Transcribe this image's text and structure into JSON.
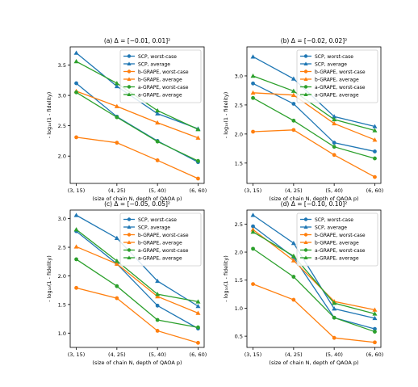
{
  "figure": {
    "x_ticklabels": [
      "(3, 15)",
      "(4, 25)",
      "(5, 40)",
      "(6, 60)"
    ],
    "xlabel": "(size of chain N, depth of QAOA p)",
    "ylabel": "- log₁₀(1 - fidelity)",
    "colors": {
      "SCP": "#1f77b4",
      "b-GRAPE": "#ff7f0e",
      "a-GRAPE": "#2ca02c"
    }
  },
  "chart_data": [
    {
      "type": "line",
      "title": "(a) Δ = [−0.01, 0.01]²",
      "categories": [
        "(3, 15)",
        "(4, 25)",
        "(5, 40)",
        "(6, 60)"
      ],
      "yticks": [
        "2.0",
        "2.5",
        "3.0",
        "3.5"
      ],
      "ylim": [
        1.55,
        3.8
      ],
      "grid": false,
      "legend_loc": "upper right",
      "series": [
        {
          "name": "SCP, worst-case",
          "color": "#1f77b4",
          "marker": "circle",
          "values": [
            3.2,
            2.65,
            2.25,
            1.9
          ]
        },
        {
          "name": "SCP, average",
          "color": "#1f77b4",
          "marker": "triangle",
          "values": [
            3.7,
            3.15,
            2.7,
            2.45
          ]
        },
        {
          "name": "b-GRAPE, worst-case",
          "color": "#ff7f0e",
          "marker": "circle",
          "values": [
            2.31,
            2.22,
            1.93,
            1.63
          ]
        },
        {
          "name": "b-GRAPE, average",
          "color": "#ff7f0e",
          "marker": "triangle",
          "values": [
            3.07,
            2.82,
            2.55,
            2.3
          ]
        },
        {
          "name": "a-GRAPE, worst-case",
          "color": "#2ca02c",
          "marker": "circle",
          "values": [
            3.05,
            2.64,
            2.24,
            1.92
          ]
        },
        {
          "name": "a-GRAPE, average",
          "color": "#2ca02c",
          "marker": "triangle",
          "values": [
            3.56,
            3.2,
            2.75,
            2.44
          ]
        }
      ]
    },
    {
      "type": "line",
      "title": "(b) Δ = [−0.02, 0.02]²",
      "categories": [
        "(3, 15)",
        "(4, 25)",
        "(5, 40)",
        "(6, 60)"
      ],
      "yticks": [
        "1.5",
        "2.0",
        "2.5",
        "3.0"
      ],
      "ylim": [
        1.15,
        3.5
      ],
      "grid": false,
      "legend_loc": "upper right",
      "series": [
        {
          "name": "SCP, worst-case",
          "color": "#1f77b4",
          "marker": "circle",
          "values": [
            2.87,
            2.52,
            1.85,
            1.7
          ]
        },
        {
          "name": "SCP, average",
          "color": "#1f77b4",
          "marker": "triangle",
          "values": [
            3.33,
            2.95,
            2.3,
            2.13
          ]
        },
        {
          "name": "b-GRAPE, worst-case",
          "color": "#ff7f0e",
          "marker": "circle",
          "values": [
            2.04,
            2.07,
            1.64,
            1.26
          ]
        },
        {
          "name": "b-GRAPE, average",
          "color": "#ff7f0e",
          "marker": "triangle",
          "values": [
            2.71,
            2.67,
            2.18,
            1.9
          ]
        },
        {
          "name": "a-GRAPE, worst-case",
          "color": "#2ca02c",
          "marker": "circle",
          "values": [
            2.62,
            2.23,
            1.78,
            1.58
          ]
        },
        {
          "name": "a-GRAPE, average",
          "color": "#2ca02c",
          "marker": "triangle",
          "values": [
            3.0,
            2.74,
            2.25,
            2.06
          ]
        }
      ]
    },
    {
      "type": "line",
      "title": "(c) Δ = [−0.05, 0.05]²",
      "categories": [
        "(3, 15)",
        "(4, 25)",
        "(5, 40)",
        "(6, 60)"
      ],
      "yticks": [
        "1.0",
        "1.5",
        "2.0",
        "2.5",
        "3.0"
      ],
      "ylim": [
        0.75,
        3.15
      ],
      "grid": false,
      "legend_loc": "upper right",
      "series": [
        {
          "name": "SCP, worst-case",
          "color": "#1f77b4",
          "marker": "circle",
          "values": [
            2.78,
            2.21,
            1.48,
            1.08
          ]
        },
        {
          "name": "SCP, average",
          "color": "#1f77b4",
          "marker": "triangle",
          "values": [
            3.06,
            2.66,
            1.91,
            1.47
          ]
        },
        {
          "name": "b-GRAPE, worst-case",
          "color": "#ff7f0e",
          "marker": "circle",
          "values": [
            1.79,
            1.61,
            1.04,
            0.83
          ]
        },
        {
          "name": "b-GRAPE, average",
          "color": "#ff7f0e",
          "marker": "triangle",
          "values": [
            2.51,
            2.21,
            1.64,
            1.35
          ]
        },
        {
          "name": "a-GRAPE, worst-case",
          "color": "#2ca02c",
          "marker": "circle",
          "values": [
            2.29,
            1.82,
            1.23,
            1.1
          ]
        },
        {
          "name": "a-GRAPE, average",
          "color": "#2ca02c",
          "marker": "triangle",
          "values": [
            2.81,
            2.26,
            1.68,
            1.55
          ]
        }
      ]
    },
    {
      "type": "line",
      "title": "(d) Δ = [−0.10, 0.10]²",
      "categories": [
        "(3, 15)",
        "(4, 25)",
        "(5, 40)",
        "(6, 60)"
      ],
      "yticks": [
        "0.5",
        "1.0",
        "1.5",
        "2.0",
        "2.5"
      ],
      "ylim": [
        0.3,
        2.75
      ],
      "grid": false,
      "legend_loc": "upper right",
      "series": [
        {
          "name": "SCP, worst-case",
          "color": "#1f77b4",
          "marker": "circle",
          "values": [
            2.46,
            1.91,
            0.83,
            0.63
          ]
        },
        {
          "name": "SCP, average",
          "color": "#1f77b4",
          "marker": "triangle",
          "values": [
            2.66,
            2.16,
            0.99,
            0.82
          ]
        },
        {
          "name": "b-GRAPE, worst-case",
          "color": "#ff7f0e",
          "marker": "circle",
          "values": [
            1.43,
            1.15,
            0.47,
            0.39
          ]
        },
        {
          "name": "b-GRAPE, average",
          "color": "#ff7f0e",
          "marker": "triangle",
          "values": [
            2.4,
            1.85,
            1.12,
            0.97
          ]
        },
        {
          "name": "a-GRAPE, worst-case",
          "color": "#2ca02c",
          "marker": "circle",
          "values": [
            2.06,
            1.56,
            0.83,
            0.58
          ]
        },
        {
          "name": "a-GRAPE, average",
          "color": "#2ca02c",
          "marker": "triangle",
          "values": [
            2.36,
            1.93,
            1.09,
            0.9
          ]
        }
      ]
    }
  ]
}
